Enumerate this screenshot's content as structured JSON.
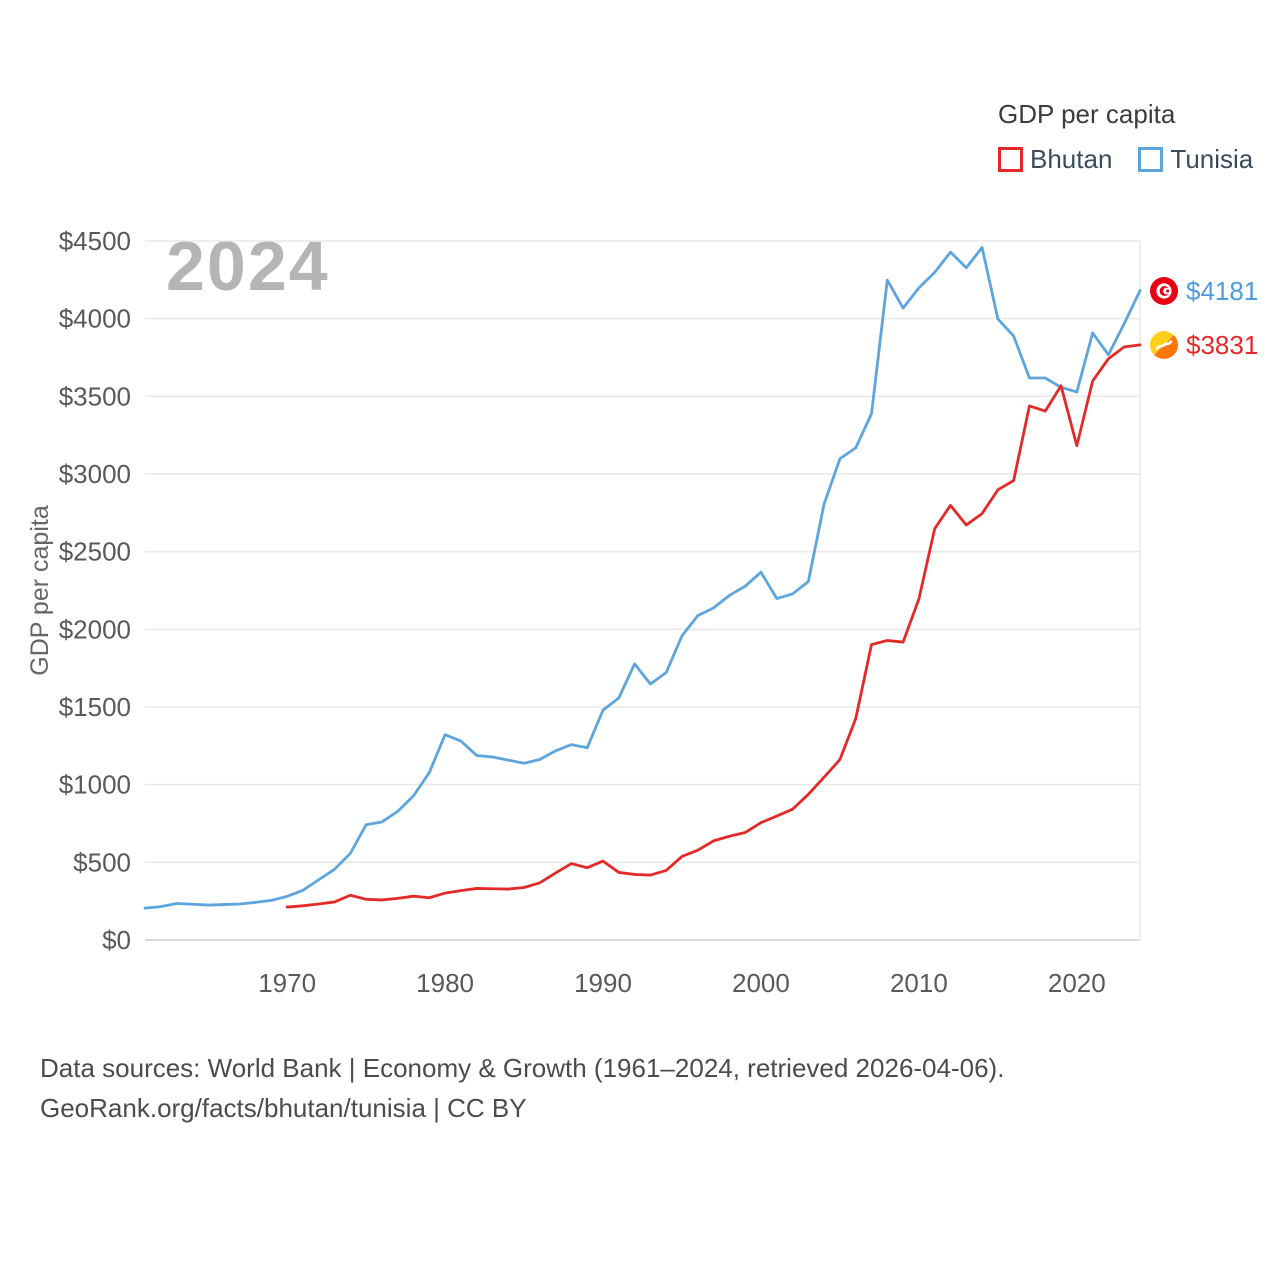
{
  "legend": {
    "title": "GDP per capita",
    "items": [
      {
        "label": "Bhutan",
        "color": "#e42a28"
      },
      {
        "label": "Tunisia",
        "color": "#5da5dc"
      }
    ]
  },
  "watermark": "2024",
  "axes": {
    "y_title": "GDP per capita",
    "y_ticks": [
      "$0",
      "$500",
      "$1000",
      "$1500",
      "$2000",
      "$2500",
      "$3000",
      "$3500",
      "$4000",
      "$4500"
    ],
    "x_ticks": [
      1970,
      1980,
      1990,
      2000,
      2010,
      2020
    ]
  },
  "end_labels": [
    {
      "country": "Tunisia",
      "value": "$4181",
      "color": "#4d9be0",
      "icon": "tunisia-flag-icon"
    },
    {
      "country": "Bhutan",
      "value": "$3831",
      "color": "#e42a28",
      "icon": "bhutan-flag-icon"
    }
  ],
  "footer": {
    "line1": "Data sources: World Bank | Economy & Growth (1961–2024, retrieved 2026-04-06).",
    "line2": "GeoRank.org/facts/bhutan/tunisia | CC BY"
  },
  "chart_data": {
    "type": "line",
    "title": "GDP per capita",
    "xlabel": "",
    "ylabel": "GDP per capita",
    "xlim": [
      1961,
      2024
    ],
    "ylim": [
      0,
      4500
    ],
    "ytick_step": 500,
    "grid": true,
    "legend_position": "top-right",
    "series": [
      {
        "name": "Tunisia",
        "color": "#5da5dc",
        "start_year": 1961,
        "end_label": "$4181",
        "values": [
          205,
          215,
          235,
          230,
          225,
          228,
          232,
          242,
          255,
          281,
          320,
          388,
          455,
          558,
          742,
          760,
          828,
          928,
          1078,
          1322,
          1281,
          1188,
          1178,
          1158,
          1138,
          1162,
          1218,
          1258,
          1238,
          1480,
          1558,
          1778,
          1648,
          1722,
          1958,
          2088,
          2138,
          2218,
          2278,
          2368,
          2198,
          2228,
          2308,
          2808,
          3098,
          3168,
          3388,
          4248,
          4068,
          4198,
          4298,
          4428,
          4328,
          4458,
          3998,
          3888,
          3618,
          3618,
          3558,
          3528,
          3908,
          3768,
          3968,
          4181
        ]
      },
      {
        "name": "Bhutan",
        "color": "#e42a28",
        "start_year": 1970,
        "end_label": "$3831",
        "values": [
          212,
          220,
          232,
          245,
          288,
          262,
          258,
          268,
          282,
          272,
          302,
          318,
          332,
          330,
          328,
          338,
          368,
          432,
          492,
          465,
          508,
          435,
          422,
          418,
          448,
          538,
          578,
          638,
          668,
          692,
          755,
          798,
          842,
          938,
          1048,
          1162,
          1425,
          1902,
          1928,
          1918,
          2195,
          2648,
          2798,
          2672,
          2745,
          2898,
          2958,
          3438,
          3405,
          3568,
          3182,
          3598,
          3742,
          3818,
          3831
        ]
      }
    ]
  }
}
